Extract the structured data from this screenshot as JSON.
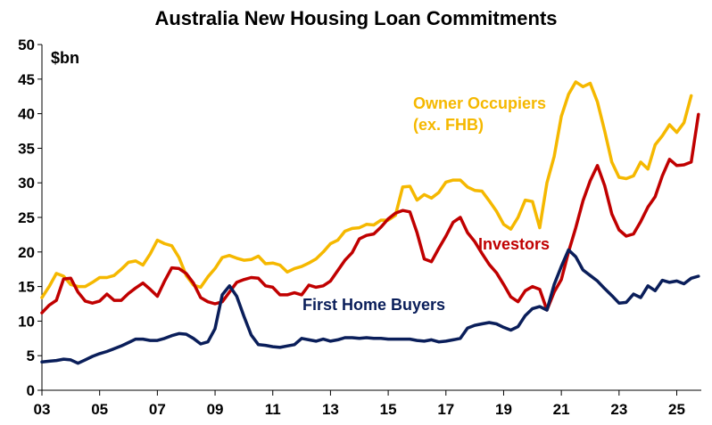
{
  "chart_data": {
    "type": "line",
    "title": "Australia New Housing Loan Commitments",
    "unit_label": "$bn",
    "xlabel": "",
    "ylabel": "",
    "ylim": [
      0,
      50
    ],
    "xlim": [
      2003.0,
      2025.85
    ],
    "y_ticks": [
      0,
      5,
      10,
      15,
      20,
      25,
      30,
      35,
      40,
      45,
      50
    ],
    "x_ticks": [
      {
        "value": 2003,
        "label": "03"
      },
      {
        "value": 2005,
        "label": "05"
      },
      {
        "value": 2007,
        "label": "07"
      },
      {
        "value": 2009,
        "label": "09"
      },
      {
        "value": 2011,
        "label": "11"
      },
      {
        "value": 2013,
        "label": "13"
      },
      {
        "value": 2015,
        "label": "15"
      },
      {
        "value": 2017,
        "label": "17"
      },
      {
        "value": 2019,
        "label": "19"
      },
      {
        "value": 2021,
        "label": "21"
      },
      {
        "value": 2023,
        "label": "23"
      },
      {
        "value": 2025,
        "label": "25"
      }
    ],
    "grid": false,
    "legend": "inline labels",
    "series": [
      {
        "name": "Owner Occupiers (ex. FHB)",
        "label_lines": [
          "Owner Occupiers",
          "(ex. FHB)"
        ],
        "color": "#F5B800",
        "points": [
          [
            2003.0,
            13.4
          ],
          [
            2003.25,
            15.0
          ],
          [
            2003.5,
            16.9
          ],
          [
            2003.75,
            16.5
          ],
          [
            2004.0,
            15.3
          ],
          [
            2004.25,
            15.0
          ],
          [
            2004.5,
            15.0
          ],
          [
            2004.75,
            15.6
          ],
          [
            2005.0,
            16.3
          ],
          [
            2005.25,
            16.3
          ],
          [
            2005.5,
            16.6
          ],
          [
            2005.75,
            17.5
          ],
          [
            2006.0,
            18.5
          ],
          [
            2006.25,
            18.7
          ],
          [
            2006.5,
            18.1
          ],
          [
            2006.75,
            19.7
          ],
          [
            2007.0,
            21.7
          ],
          [
            2007.25,
            21.2
          ],
          [
            2007.5,
            20.9
          ],
          [
            2007.75,
            19.2
          ],
          [
            2008.0,
            16.6
          ],
          [
            2008.25,
            15.2
          ],
          [
            2008.5,
            14.9
          ],
          [
            2008.75,
            16.4
          ],
          [
            2009.0,
            17.6
          ],
          [
            2009.25,
            19.2
          ],
          [
            2009.5,
            19.5
          ],
          [
            2009.75,
            19.1
          ],
          [
            2010.0,
            18.8
          ],
          [
            2010.25,
            18.9
          ],
          [
            2010.5,
            19.4
          ],
          [
            2010.75,
            18.3
          ],
          [
            2011.0,
            18.4
          ],
          [
            2011.25,
            18.1
          ],
          [
            2011.5,
            17.1
          ],
          [
            2011.75,
            17.6
          ],
          [
            2012.0,
            17.9
          ],
          [
            2012.25,
            18.4
          ],
          [
            2012.5,
            19.0
          ],
          [
            2012.75,
            20.0
          ],
          [
            2013.0,
            21.2
          ],
          [
            2013.25,
            21.7
          ],
          [
            2013.5,
            23.0
          ],
          [
            2013.75,
            23.4
          ],
          [
            2014.0,
            23.5
          ],
          [
            2014.25,
            24.0
          ],
          [
            2014.5,
            23.9
          ],
          [
            2014.75,
            24.6
          ],
          [
            2015.0,
            24.6
          ],
          [
            2015.25,
            25.3
          ],
          [
            2015.5,
            29.4
          ],
          [
            2015.75,
            29.5
          ],
          [
            2016.0,
            27.5
          ],
          [
            2016.25,
            28.3
          ],
          [
            2016.5,
            27.8
          ],
          [
            2016.75,
            28.6
          ],
          [
            2017.0,
            30.1
          ],
          [
            2017.25,
            30.4
          ],
          [
            2017.5,
            30.4
          ],
          [
            2017.75,
            29.4
          ],
          [
            2018.0,
            28.9
          ],
          [
            2018.25,
            28.8
          ],
          [
            2018.5,
            27.4
          ],
          [
            2018.75,
            25.9
          ],
          [
            2019.0,
            24.0
          ],
          [
            2019.25,
            23.3
          ],
          [
            2019.5,
            25.0
          ],
          [
            2019.75,
            27.5
          ],
          [
            2020.0,
            27.3
          ],
          [
            2020.25,
            23.5
          ],
          [
            2020.5,
            30.0
          ],
          [
            2020.75,
            33.8
          ],
          [
            2021.0,
            39.6
          ],
          [
            2021.25,
            42.8
          ],
          [
            2021.5,
            44.6
          ],
          [
            2021.75,
            43.9
          ],
          [
            2022.0,
            44.4
          ],
          [
            2022.25,
            41.7
          ],
          [
            2022.5,
            37.5
          ],
          [
            2022.75,
            33.0
          ],
          [
            2023.0,
            30.8
          ],
          [
            2023.25,
            30.6
          ],
          [
            2023.5,
            31.0
          ],
          [
            2023.75,
            33.0
          ],
          [
            2024.0,
            32.0
          ],
          [
            2024.25,
            35.5
          ],
          [
            2024.5,
            36.8
          ],
          [
            2024.75,
            38.4
          ],
          [
            2025.0,
            37.3
          ],
          [
            2025.25,
            38.7
          ],
          [
            2025.5,
            42.6
          ]
        ]
      },
      {
        "name": "Investors",
        "label_lines": [
          "Investors"
        ],
        "color": "#C00000",
        "points": [
          [
            2003.0,
            11.2
          ],
          [
            2003.25,
            12.3
          ],
          [
            2003.5,
            13.0
          ],
          [
            2003.75,
            16.1
          ],
          [
            2004.0,
            16.2
          ],
          [
            2004.25,
            14.2
          ],
          [
            2004.5,
            12.9
          ],
          [
            2004.75,
            12.6
          ],
          [
            2005.0,
            12.9
          ],
          [
            2005.25,
            13.9
          ],
          [
            2005.5,
            13.0
          ],
          [
            2005.75,
            13.0
          ],
          [
            2006.0,
            14.0
          ],
          [
            2006.25,
            14.8
          ],
          [
            2006.5,
            15.5
          ],
          [
            2006.75,
            14.6
          ],
          [
            2007.0,
            13.6
          ],
          [
            2007.25,
            15.8
          ],
          [
            2007.5,
            17.7
          ],
          [
            2007.75,
            17.6
          ],
          [
            2008.0,
            16.9
          ],
          [
            2008.25,
            15.5
          ],
          [
            2008.5,
            13.4
          ],
          [
            2008.75,
            12.8
          ],
          [
            2009.0,
            12.5
          ],
          [
            2009.25,
            12.8
          ],
          [
            2009.5,
            14.2
          ],
          [
            2009.75,
            15.6
          ],
          [
            2010.0,
            16.0
          ],
          [
            2010.25,
            16.3
          ],
          [
            2010.5,
            16.2
          ],
          [
            2010.75,
            15.1
          ],
          [
            2011.0,
            14.9
          ],
          [
            2011.25,
            13.8
          ],
          [
            2011.5,
            13.8
          ],
          [
            2011.75,
            14.1
          ],
          [
            2012.0,
            13.8
          ],
          [
            2012.25,
            15.2
          ],
          [
            2012.5,
            14.9
          ],
          [
            2012.75,
            15.1
          ],
          [
            2013.0,
            15.8
          ],
          [
            2013.25,
            17.3
          ],
          [
            2013.5,
            18.8
          ],
          [
            2013.75,
            19.9
          ],
          [
            2014.0,
            21.9
          ],
          [
            2014.25,
            22.4
          ],
          [
            2014.5,
            22.6
          ],
          [
            2014.75,
            23.6
          ],
          [
            2015.0,
            24.8
          ],
          [
            2015.25,
            25.6
          ],
          [
            2015.5,
            26.0
          ],
          [
            2015.75,
            25.8
          ],
          [
            2016.0,
            22.8
          ],
          [
            2016.25,
            19.0
          ],
          [
            2016.5,
            18.6
          ],
          [
            2016.75,
            20.5
          ],
          [
            2017.0,
            22.3
          ],
          [
            2017.25,
            24.3
          ],
          [
            2017.5,
            25.0
          ],
          [
            2017.75,
            22.8
          ],
          [
            2018.0,
            21.5
          ],
          [
            2018.25,
            19.8
          ],
          [
            2018.5,
            18.2
          ],
          [
            2018.75,
            17.0
          ],
          [
            2019.0,
            15.3
          ],
          [
            2019.25,
            13.5
          ],
          [
            2019.5,
            12.8
          ],
          [
            2019.75,
            14.4
          ],
          [
            2020.0,
            15.0
          ],
          [
            2020.25,
            14.6
          ],
          [
            2020.5,
            11.6
          ],
          [
            2020.75,
            14.2
          ],
          [
            2021.0,
            16.0
          ],
          [
            2021.25,
            20.0
          ],
          [
            2021.5,
            23.5
          ],
          [
            2021.75,
            27.4
          ],
          [
            2022.0,
            30.3
          ],
          [
            2022.25,
            32.5
          ],
          [
            2022.5,
            29.6
          ],
          [
            2022.75,
            25.5
          ],
          [
            2023.0,
            23.2
          ],
          [
            2023.25,
            22.3
          ],
          [
            2023.5,
            22.6
          ],
          [
            2023.75,
            24.4
          ],
          [
            2024.0,
            26.5
          ],
          [
            2024.25,
            28.0
          ],
          [
            2024.5,
            31.0
          ],
          [
            2024.75,
            33.4
          ],
          [
            2025.0,
            32.5
          ],
          [
            2025.25,
            32.6
          ],
          [
            2025.5,
            33.0
          ],
          [
            2025.75,
            39.9
          ]
        ]
      },
      {
        "name": "First Home Buyers",
        "label_lines": [
          "First Home Buyers"
        ],
        "color": "#0A1E5A",
        "points": [
          [
            2003.0,
            4.1
          ],
          [
            2003.25,
            4.2
          ],
          [
            2003.5,
            4.3
          ],
          [
            2003.75,
            4.5
          ],
          [
            2004.0,
            4.4
          ],
          [
            2004.25,
            3.9
          ],
          [
            2004.5,
            4.4
          ],
          [
            2004.75,
            4.9
          ],
          [
            2005.0,
            5.3
          ],
          [
            2005.25,
            5.6
          ],
          [
            2005.5,
            6.0
          ],
          [
            2005.75,
            6.4
          ],
          [
            2006.0,
            6.9
          ],
          [
            2006.25,
            7.4
          ],
          [
            2006.5,
            7.4
          ],
          [
            2006.75,
            7.2
          ],
          [
            2007.0,
            7.2
          ],
          [
            2007.25,
            7.5
          ],
          [
            2007.5,
            7.9
          ],
          [
            2007.75,
            8.2
          ],
          [
            2008.0,
            8.1
          ],
          [
            2008.25,
            7.5
          ],
          [
            2008.5,
            6.7
          ],
          [
            2008.75,
            7.0
          ],
          [
            2009.0,
            8.9
          ],
          [
            2009.25,
            13.8
          ],
          [
            2009.5,
            15.1
          ],
          [
            2009.75,
            13.6
          ],
          [
            2010.0,
            10.7
          ],
          [
            2010.25,
            8.0
          ],
          [
            2010.5,
            6.6
          ],
          [
            2010.75,
            6.5
          ],
          [
            2011.0,
            6.3
          ],
          [
            2011.25,
            6.2
          ],
          [
            2011.5,
            6.4
          ],
          [
            2011.75,
            6.6
          ],
          [
            2012.0,
            7.5
          ],
          [
            2012.25,
            7.3
          ],
          [
            2012.5,
            7.1
          ],
          [
            2012.75,
            7.4
          ],
          [
            2013.0,
            7.1
          ],
          [
            2013.25,
            7.3
          ],
          [
            2013.5,
            7.6
          ],
          [
            2013.75,
            7.6
          ],
          [
            2014.0,
            7.5
          ],
          [
            2014.25,
            7.6
          ],
          [
            2014.5,
            7.5
          ],
          [
            2014.75,
            7.5
          ],
          [
            2015.0,
            7.4
          ],
          [
            2015.25,
            7.4
          ],
          [
            2015.5,
            7.4
          ],
          [
            2015.75,
            7.4
          ],
          [
            2016.0,
            7.2
          ],
          [
            2016.25,
            7.1
          ],
          [
            2016.5,
            7.3
          ],
          [
            2016.75,
            7.0
          ],
          [
            2017.0,
            7.1
          ],
          [
            2017.25,
            7.3
          ],
          [
            2017.5,
            7.5
          ],
          [
            2017.75,
            9.0
          ],
          [
            2018.0,
            9.4
          ],
          [
            2018.25,
            9.6
          ],
          [
            2018.5,
            9.8
          ],
          [
            2018.75,
            9.6
          ],
          [
            2019.0,
            9.1
          ],
          [
            2019.25,
            8.7
          ],
          [
            2019.5,
            9.2
          ],
          [
            2019.75,
            10.8
          ],
          [
            2020.0,
            11.8
          ],
          [
            2020.25,
            12.1
          ],
          [
            2020.5,
            11.6
          ],
          [
            2020.75,
            15.3
          ],
          [
            2021.0,
            17.9
          ],
          [
            2021.25,
            20.3
          ],
          [
            2021.5,
            19.3
          ],
          [
            2021.75,
            17.4
          ],
          [
            2022.0,
            16.6
          ],
          [
            2022.25,
            15.8
          ],
          [
            2022.5,
            14.7
          ],
          [
            2022.75,
            13.7
          ],
          [
            2023.0,
            12.6
          ],
          [
            2023.25,
            12.7
          ],
          [
            2023.5,
            13.9
          ],
          [
            2023.75,
            13.4
          ],
          [
            2024.0,
            15.1
          ],
          [
            2024.25,
            14.4
          ],
          [
            2024.5,
            15.9
          ],
          [
            2024.75,
            15.6
          ],
          [
            2025.0,
            15.8
          ],
          [
            2025.25,
            15.4
          ],
          [
            2025.5,
            16.2
          ],
          [
            2025.75,
            16.5
          ]
        ]
      }
    ]
  }
}
